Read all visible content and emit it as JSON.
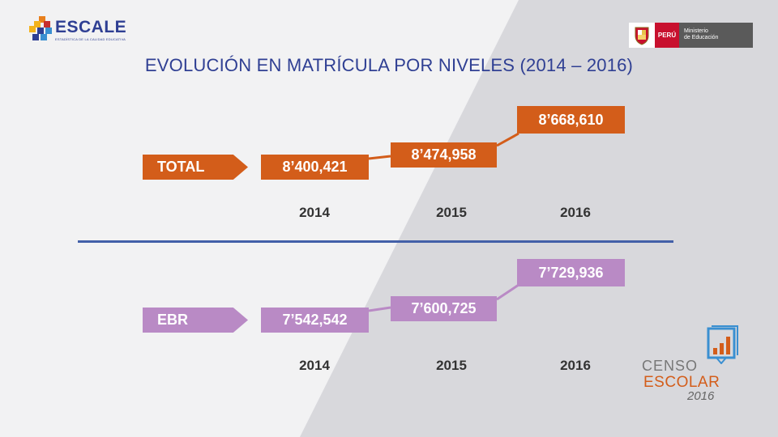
{
  "logo": {
    "name": "ESCALE",
    "subtitle": "ESTADÍSTICA DE LA CALIDAD EDUCATIVA"
  },
  "gov": {
    "country": "PERÚ",
    "ministry_line1": "Ministerio",
    "ministry_line2": "de Educación"
  },
  "title": "EVOLUCIÓN EN MATRÍCULA POR NIVELES (2014 – 2016)",
  "sections": [
    {
      "label": "TOTAL",
      "values": [
        "8’400,421",
        "8’474,958",
        "8’668,610"
      ],
      "years": [
        "2014",
        "2015",
        "2016"
      ],
      "color": "#d35d1a"
    },
    {
      "label": "EBR",
      "values": [
        "7’542,542",
        "7’600,725",
        "7’729,936"
      ],
      "years": [
        "2014",
        "2015",
        "2016"
      ],
      "color": "#b98ac5"
    }
  ],
  "censo": {
    "line1": "CENSO",
    "line2": "ESCOLAR",
    "line3": "2016"
  },
  "colors": {
    "title": "#2f3f93",
    "divider": "#4360a8",
    "orange": "#d35d1a",
    "purple": "#b98ac5"
  }
}
